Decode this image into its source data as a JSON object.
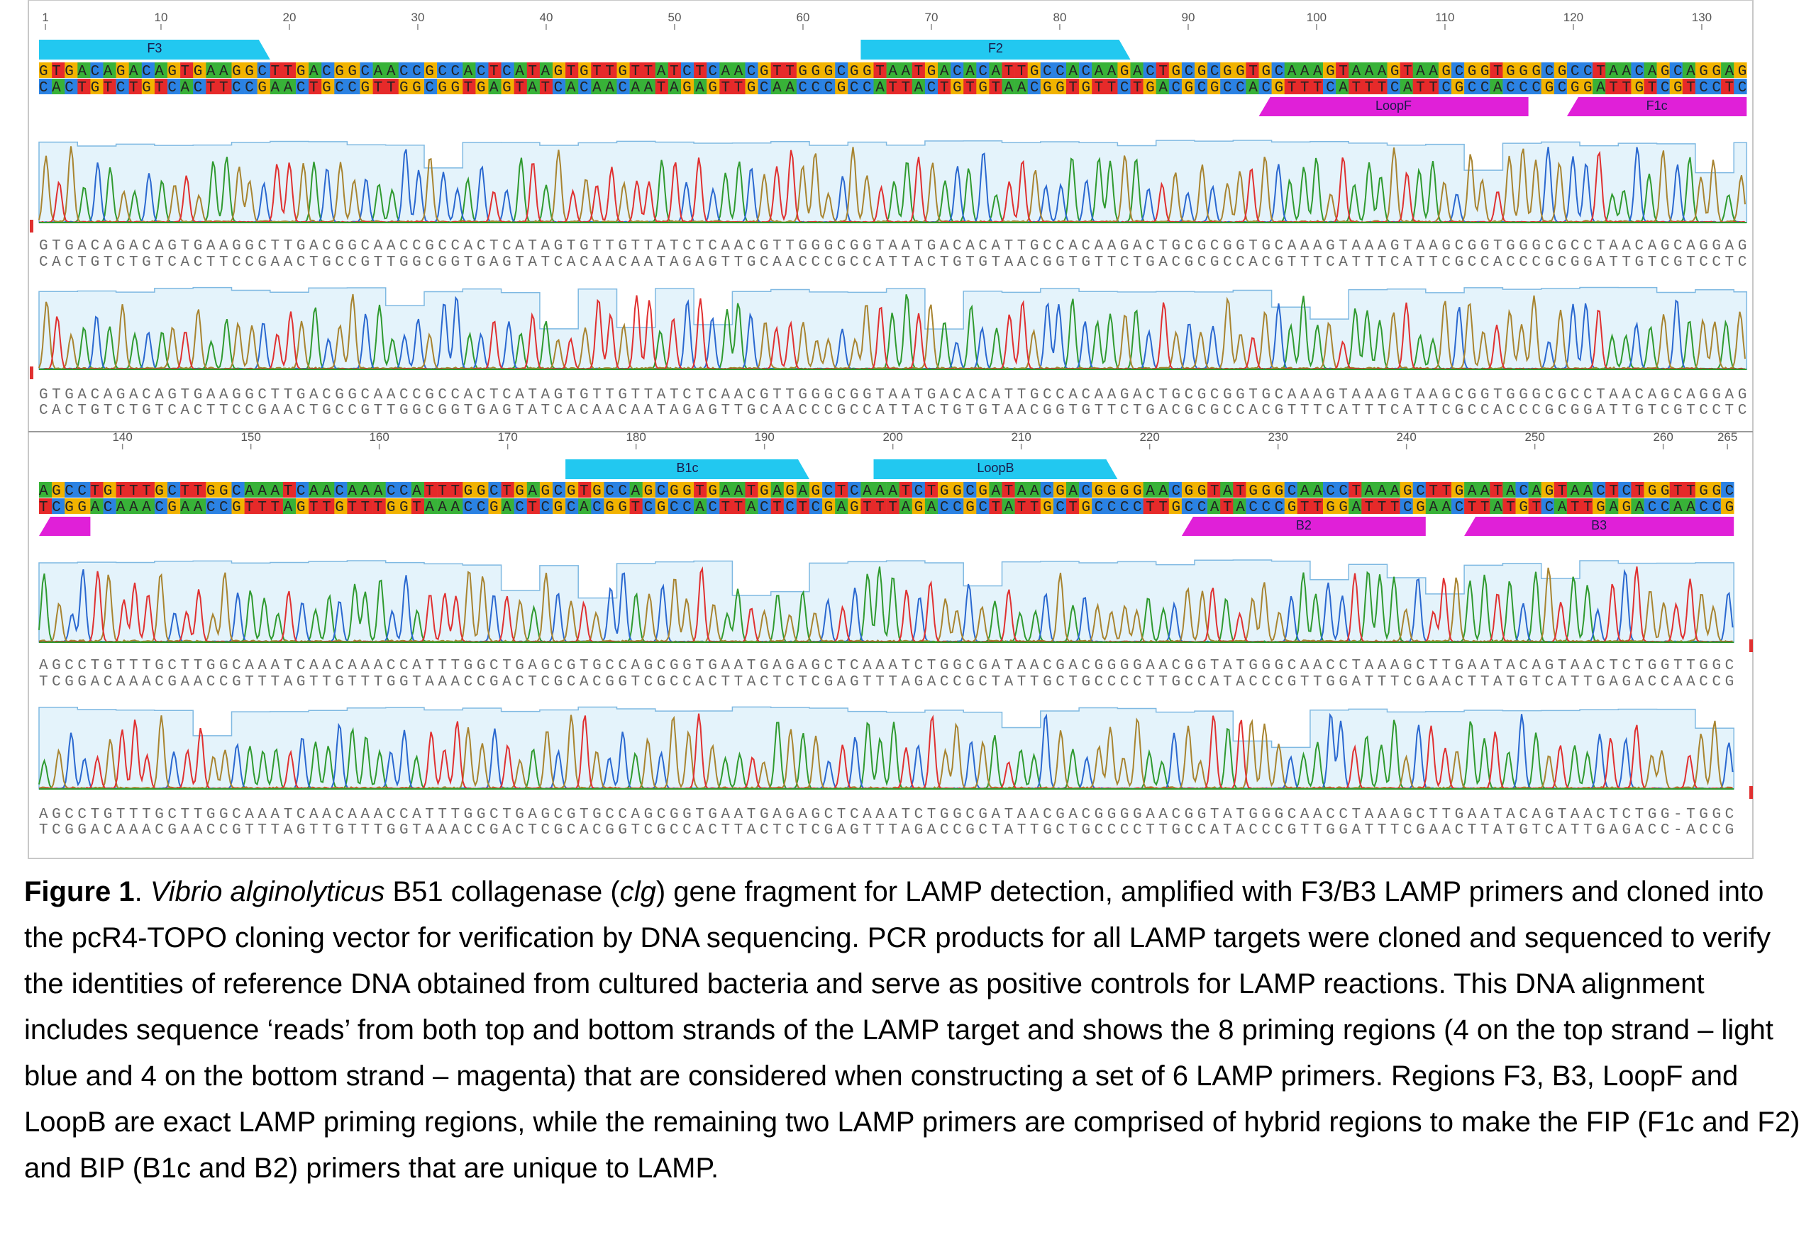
{
  "alignment": {
    "blocks": [
      {
        "ruler": [
          1,
          10,
          20,
          30,
          40,
          50,
          60,
          70,
          80,
          90,
          100,
          110,
          120,
          130
        ],
        "top": "GTGACAGACAGTGAAGGCTTGACGGCAACCGCCACTCATAGTGTTGTTATCTCAACGTTGGGCGGTAATGACACATTGCCACAAGACTGCGCGGTGCAAAGTAAAGTAAGCGGTGGGCGCCTAACAGCAGGAG",
        "bottom": "CACTGTCTGTCACTTCCGAACTGCCGTTGGCGGTGAGTATCACAACAATAGAGTTGCAACCCGCCATTACTGTGTAACGGTGTTCTGACGCGCCACGTTTCATTTCATTCGCCACCCGCGGATTGTCGTCCTC",
        "reads": [
          {
            "top": "GTGACAGACAGTGAAGGCTTGACGGCAACCGCCACTCATAGTGTTGTTATCTCAACGTTGGGCGGTAATGACACATTGCCACAAGACTGCGCGGTGCAAAGTAAAGTAAGCGGTGGGCGCCTAACAGCAGGAG",
            "bottom": "CACTGTCTGTCACTTCCGAACTGCCGTTGGCGGTGAGTATCACAACAATAGAGTTGCAACCCGCCATTACTGTGTAACGGTGTTCTGACGCGCCACGTTTCATTTCATTCGCCACCCGCGGATTGTCGTCCTC"
          },
          {
            "top": "GTGACAGACAGTGAAGGCTTGACGGCAACCGCCACTCATAGTGTTGTTATCTCAACGTTGGGCGGTAATGACACATTGCCACAAGACTGCGCGGTGCAAAGTAAAGTAAGCGGTGGGCGCCTAACAGCAGGAG",
            "bottom": "CACTGTCTGTCACTTCCGAACTGCCGTTGGCGGTGAGTATCACAACAATAGAGTTGCAACCCGCCATTACTGTGTAACGGTGTTCTGACGCGCCACGTTTCATTTCATTCGCCACCCGCGGATTGTCGTCCTC"
          }
        ]
      },
      {
        "ruler": [
          140,
          150,
          160,
          170,
          180,
          190,
          200,
          210,
          220,
          230,
          240,
          250,
          260,
          265
        ],
        "top": "AGCCTGTTTGCTTGGCAAATCAACAAACCATTTGGCTGAGCGTGCCAGCGGTGAATGAGAGCTCAAATCTGGCGATAACGACGGGGAACGGTATGGGCAACCTAAAGCTTGAATACAGTAACTCTGGTTGGC",
        "bottom": "TCGGACAAACGAACCGTTTAGTTGTTTGGTAAACCGACTCGCACGGTCGCCACTTACTCTCGAGTTTAGACCGCTATTGCTGCCCCTTGCCATACCCGTTGGATTTCGAACTTATGTCATTGAGACCAACCG",
        "reads": [
          {
            "top": "AGCCTGTTTGCTTGGCAAATCAACAAACCATTTGGCTGAGCGTGCCAGCGGTGAATGAGAGCTCAAATCTGGCGATAACGACGGGGAACGGTATGGGCAACCTAAAGCTTGAATACAGTAACTCTGGTTGGC",
            "bottom": "TCGGACAAACGAACCGTTTAGTTGTTTGGTAAACCGACTCGCACGGTCGCCACTTACTCTCGAGTTTAGACCGCTATTGCTGCCCCTTGCCATACCCGTTGGATTTCGAACTTATGTCATTGAGACCAACCG"
          },
          {
            "top": "AGCCTGTTTGCTTGGCAAATCAACAAACCATTTGGCTGAGCGTGCCAGCGGTGAATGAGAGCTCAAATCTGGCGATAACGACGGGGAACGGTATGGGCAACCTAAAGCTTGAATACAGTAACTCTGG-TGGC",
            "bottom": "TCGGACAAACGAACCGTTTAGTTGTTTGGTAAACCGACTCGCACGGTCGCCACTTACTCTCGAGTTTAGACCGCTATTGCTGCCCCTTGCCATACCCGTTGGATTTCGAACTTATGTCATTGAGACC-ACCG"
          }
        ]
      }
    ],
    "primers": [
      {
        "label": "F3",
        "strand": "top",
        "color": "#22c8f0",
        "start": 1,
        "end": 18
      },
      {
        "label": "F2",
        "strand": "top",
        "color": "#22c8f0",
        "start": 65,
        "end": 85
      },
      {
        "label": "LoopF",
        "strand": "bottom",
        "color": "#e020d8",
        "start": 96,
        "end": 116
      },
      {
        "label": "F1c",
        "strand": "bottom",
        "color": "#e020d8",
        "start": 120,
        "end": 137
      },
      {
        "label": "B1c",
        "strand": "top",
        "color": "#22c8f0",
        "start": 175,
        "end": 193
      },
      {
        "label": "LoopB",
        "strand": "top",
        "color": "#22c8f0",
        "start": 199,
        "end": 217
      },
      {
        "label": "B2",
        "strand": "bottom",
        "color": "#e020d8",
        "start": 223,
        "end": 241
      },
      {
        "label": "B3",
        "strand": "bottom",
        "color": "#e020d8",
        "start": 245,
        "end": 265
      }
    ]
  },
  "caption": [
    {
      "text": "Figure 1",
      "bold": true
    },
    {
      "text": ". "
    },
    {
      "text": "Vibrio alginolyticus",
      "italic": true
    },
    {
      "text": " B51 collagenase ("
    },
    {
      "text": "clg",
      "italic": true
    },
    {
      "text": ") gene fragment for LAMP detection, amplified with F3/B3 LAMP primers and cloned into the pcR4-TOPO cloning vector for verification by DNA sequencing. PCR products for all LAMP targets were cloned and sequenced to verify the identities of reference DNA obtained from cultured bacteria and serve as positive controls for LAMP reactions. This DNA alignment includes sequence ‘reads’ from both top and bottom strands of the LAMP target and shows the 8 priming regions (4 on the top strand – light blue and 4 on the bottom strand – magenta) that are considered when constructing a set of 6 LAMP primers. Regions F3, B3, LoopF and LoopB are exact LAMP priming regions, while the remaining two LAMP primers are comprised of hybrid regions to make the FIP (F1c and F2) and BIP (B1c and B2) primers that are unique to LAMP."
    }
  ]
}
